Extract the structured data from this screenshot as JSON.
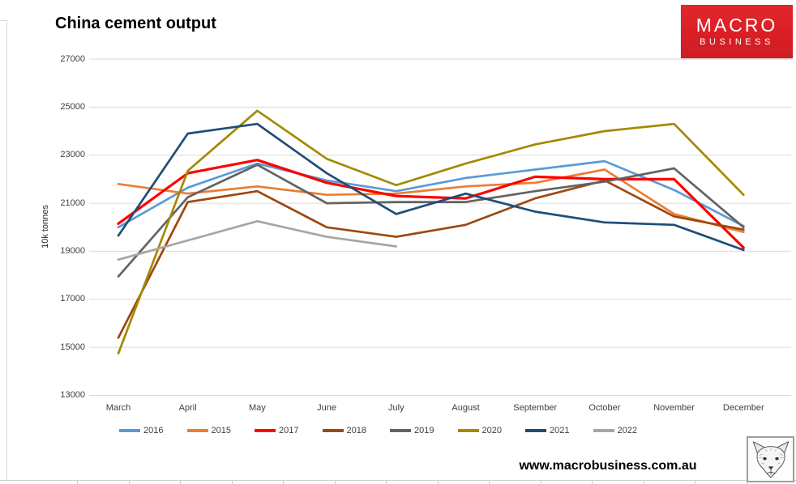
{
  "logo": {
    "line1": "MACRO",
    "line2": "BUSINESS",
    "bg_color": "#D91F26",
    "text_color": "#FFFFFF"
  },
  "footer": {
    "url": "www.macrobusiness.com.au"
  },
  "chart_data": {
    "type": "line",
    "title": "China cement output",
    "xlabel": "",
    "ylabel": "10k tonnes",
    "ylim": [
      13000,
      27000
    ],
    "yticks": [
      27000,
      25000,
      23000,
      21000,
      19000,
      17000,
      15000,
      13000
    ],
    "grid": "horizontal-only",
    "gridline_color": "#D9D9D9",
    "legend_position": "bottom",
    "categories": [
      "March",
      "April",
      "May",
      "June",
      "July",
      "August",
      "September",
      "October",
      "November",
      "December"
    ],
    "series": [
      {
        "name": "2016",
        "color": "#5B9BD5",
        "values": [
          20000,
          21650,
          22650,
          21950,
          21500,
          22050,
          22400,
          22750,
          21550,
          20050
        ]
      },
      {
        "name": "2015",
        "color": "#ED7D31",
        "values": [
          21800,
          21400,
          21700,
          21350,
          21400,
          21700,
          21850,
          22400,
          20550,
          19800
        ]
      },
      {
        "name": "2017",
        "color": "#FF0000",
        "values": [
          20150,
          22250,
          22800,
          21850,
          21300,
          21200,
          22100,
          22000,
          22000,
          19150
        ]
      },
      {
        "name": "2018",
        "color": "#9E480E",
        "values": [
          15400,
          21050,
          21500,
          20000,
          19600,
          20100,
          21200,
          21950,
          20450,
          19900
        ]
      },
      {
        "name": "2019",
        "color": "#636363",
        "values": [
          17950,
          21250,
          22600,
          21000,
          21050,
          21050,
          21500,
          21900,
          22450,
          20000
        ]
      },
      {
        "name": "2020",
        "color": "#A38A00",
        "values": [
          14750,
          22350,
          24850,
          22850,
          21750,
          22650,
          23450,
          24000,
          24300,
          21350
        ]
      },
      {
        "name": "2021",
        "color": "#1F4E79",
        "values": [
          19650,
          23900,
          24300,
          22250,
          20550,
          21400,
          20650,
          20200,
          20100,
          19050
        ]
      },
      {
        "name": "2022",
        "color": "#A6A6A6",
        "values": [
          18650,
          19450,
          20250,
          19600,
          19200,
          null,
          null,
          null,
          null,
          null
        ]
      }
    ]
  }
}
